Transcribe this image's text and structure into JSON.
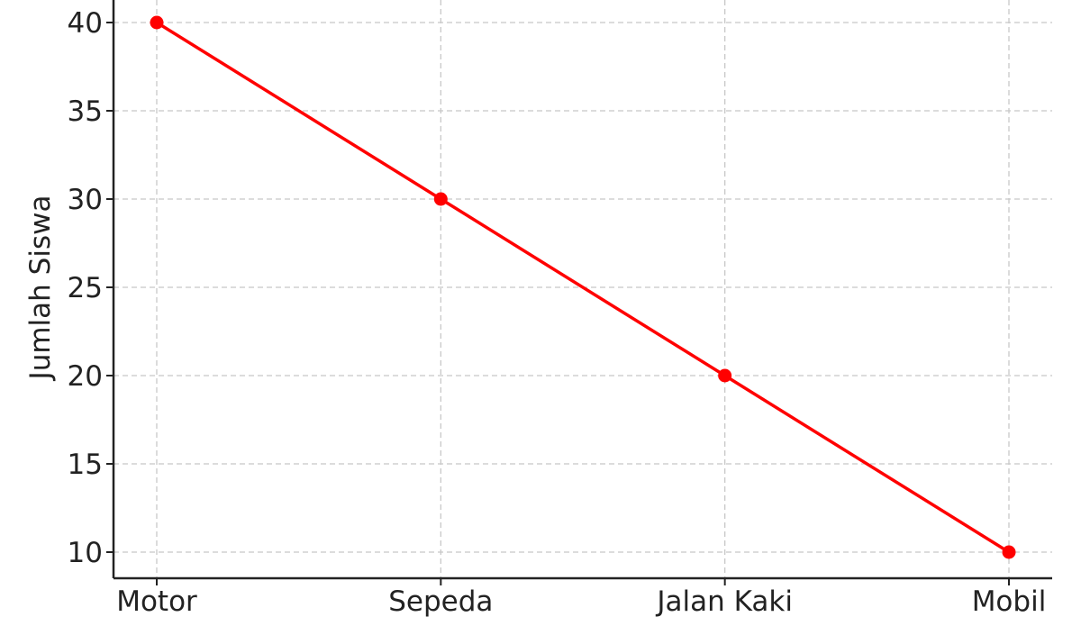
{
  "chart_data": {
    "type": "line",
    "categories": [
      "Motor",
      "Sepeda",
      "Jalan Kaki",
      "Mobil"
    ],
    "series": [
      {
        "values": [
          40,
          30,
          20,
          10
        ],
        "color": "#ff0000"
      }
    ],
    "title": "",
    "xlabel": "",
    "ylabel": "Jumlah Siswa",
    "ylim": [
      8.5,
      41.5
    ],
    "yticks": [
      10,
      15,
      20,
      25,
      30,
      35,
      40
    ],
    "grid": true,
    "legend": "none",
    "colors": {
      "grid": "#c8c8c8",
      "axis": "#222222",
      "text": "#222222"
    }
  }
}
